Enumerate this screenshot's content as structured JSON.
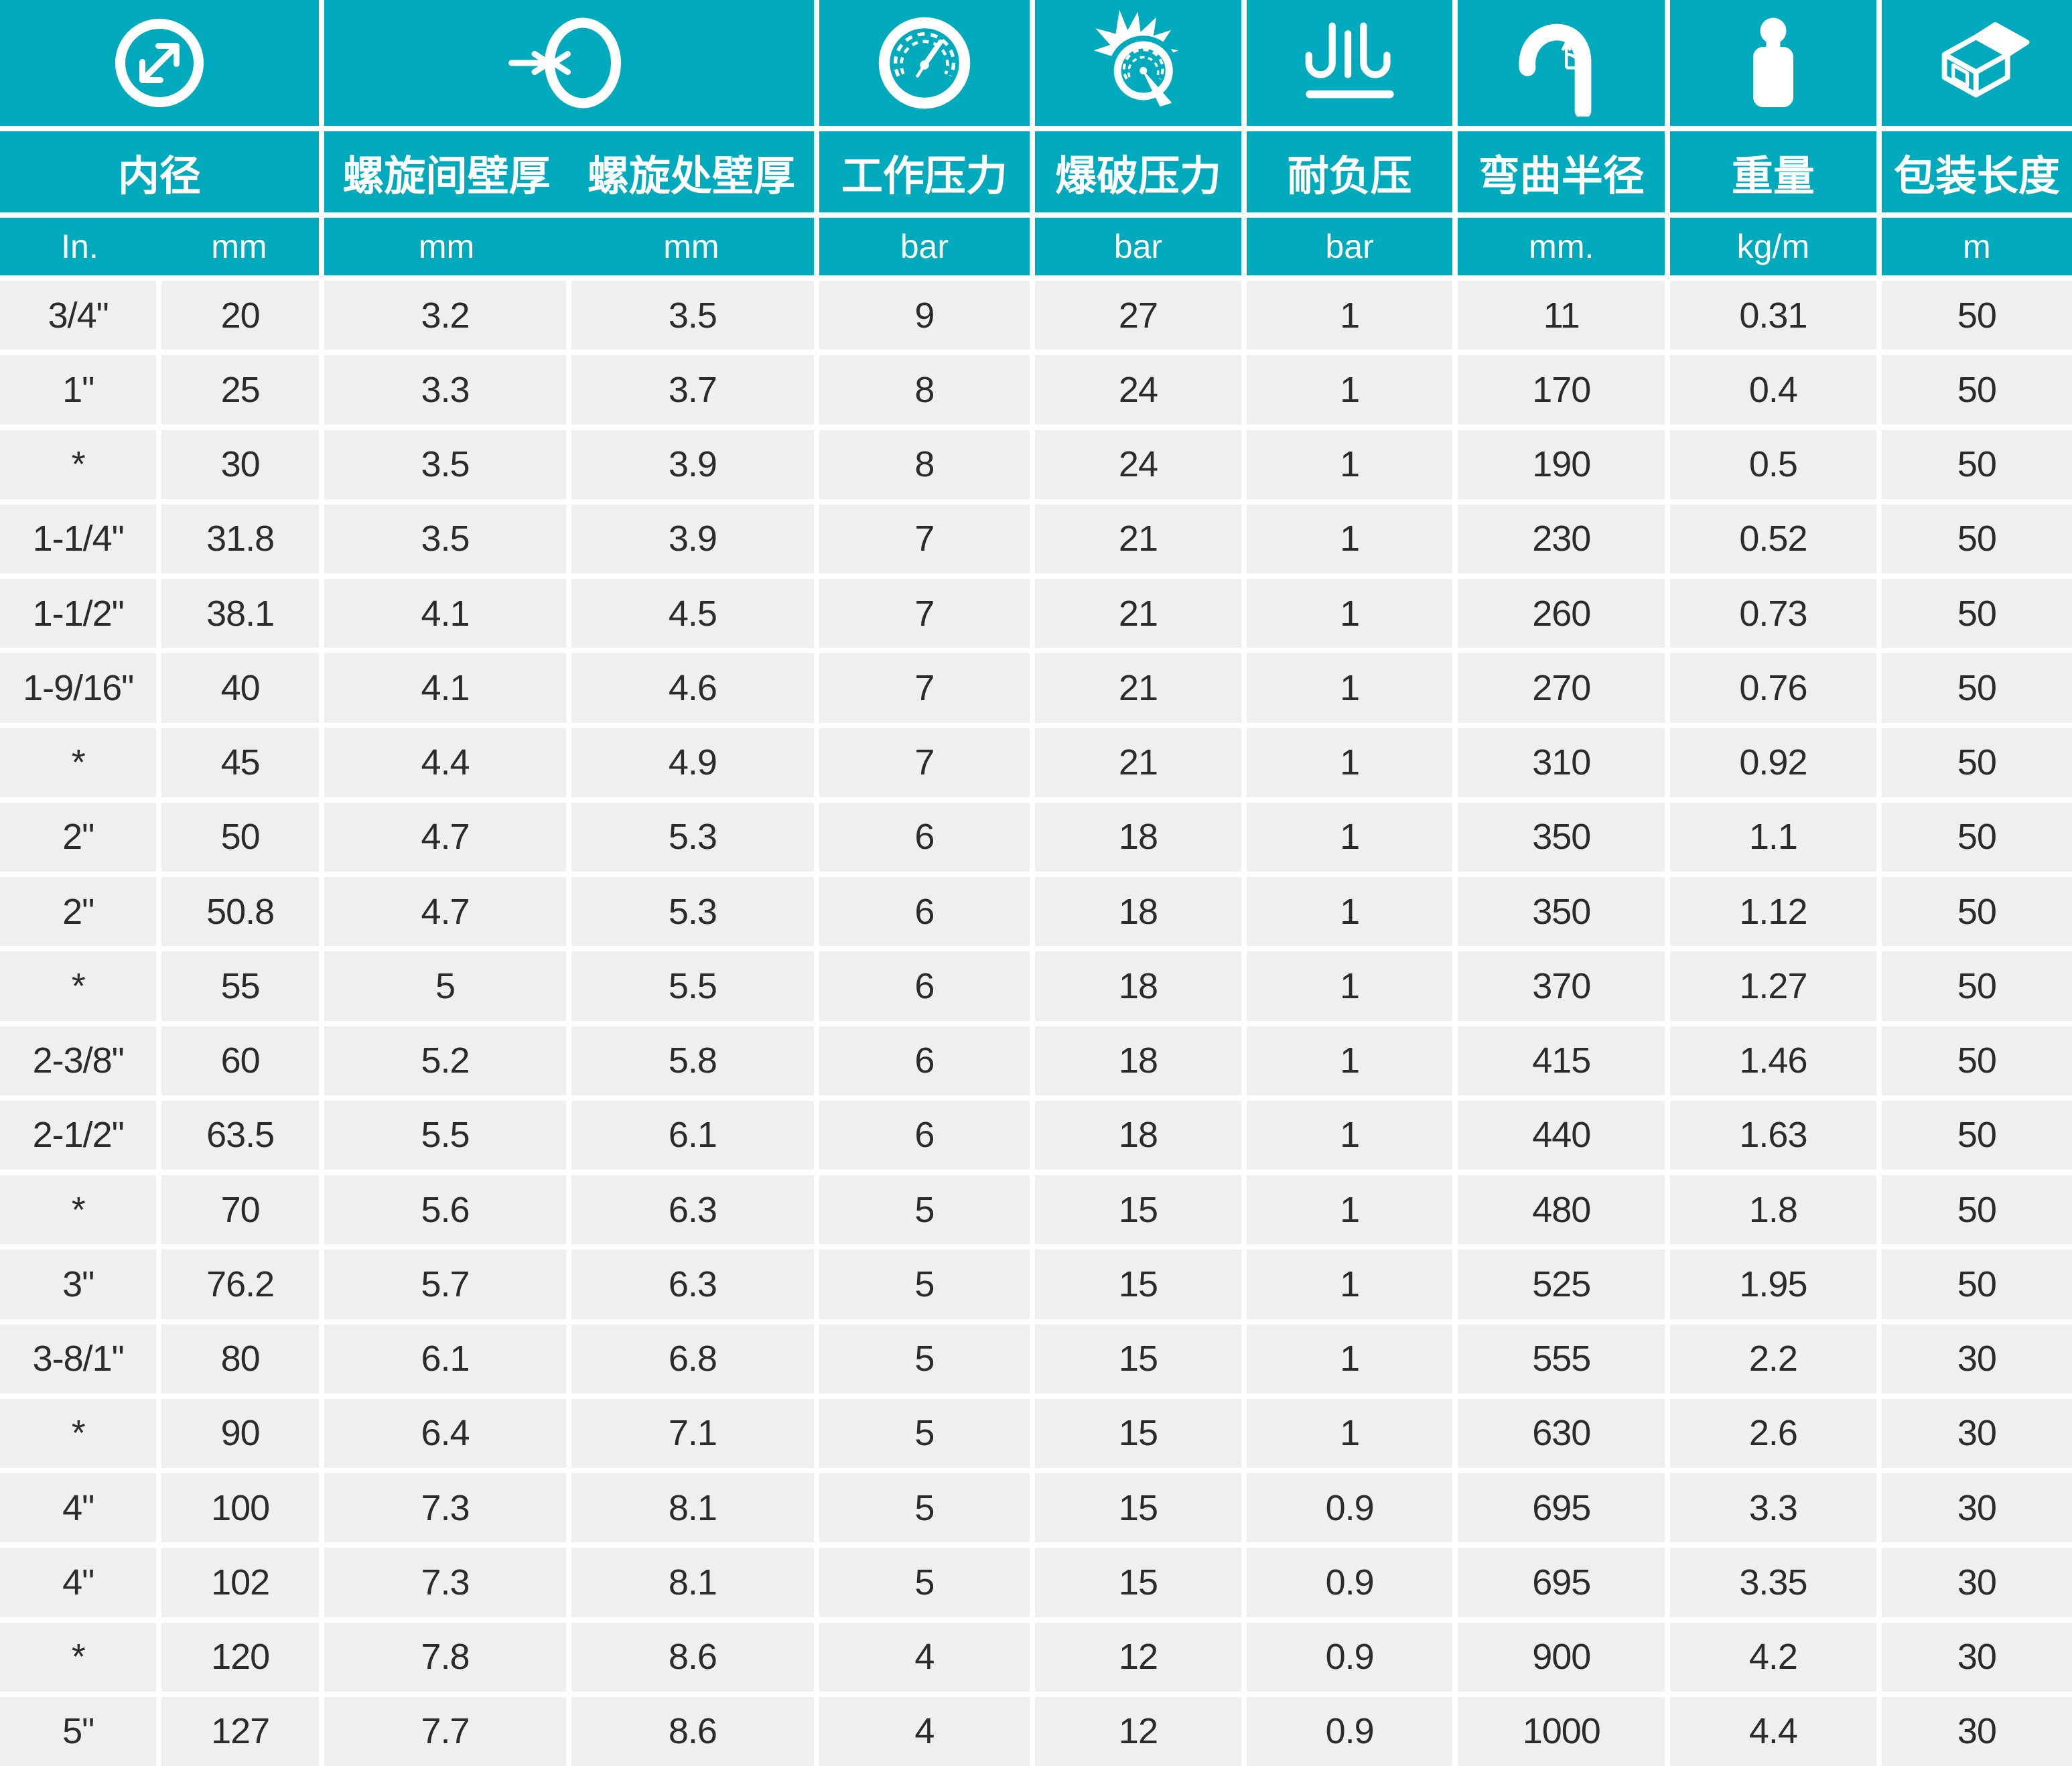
{
  "table": {
    "colors": {
      "header_teal": "#00AABD",
      "row_gray": "#EFEFEF",
      "grid_white": "#FFFFFF",
      "text_dark": "#2B2B2B"
    },
    "column_groups": [
      {
        "label": "内径",
        "icon": "inner-diameter-icon",
        "units": [
          "In.",
          "mm"
        ]
      },
      {
        "labels": [
          "螺旋间壁厚",
          "螺旋处壁厚"
        ],
        "icon": "wall-thickness-icon",
        "units": [
          "mm",
          "mm"
        ]
      },
      {
        "label": "工作压力",
        "icon": "working-pressure-gauge-icon",
        "unit": "bar"
      },
      {
        "label": "爆破压力",
        "icon": "burst-pressure-icon",
        "unit": "bar"
      },
      {
        "label": "耐负压",
        "icon": "vacuum-resistance-icon",
        "unit": "bar"
      },
      {
        "label": "弯曲半径",
        "icon": "bend-radius-icon",
        "unit": "mm."
      },
      {
        "label": "重量",
        "icon": "weight-icon",
        "unit": "kg/m"
      },
      {
        "label": "包装长度",
        "icon": "package-length-icon",
        "unit": "m"
      }
    ],
    "rows": [
      [
        "3/4\"",
        "20",
        "3.2",
        "3.5",
        "9",
        "27",
        "1",
        "11",
        "0.31",
        "50"
      ],
      [
        "1\"",
        "25",
        "3.3",
        "3.7",
        "8",
        "24",
        "1",
        "170",
        "0.4",
        "50"
      ],
      [
        "*",
        "30",
        "3.5",
        "3.9",
        "8",
        "24",
        "1",
        "190",
        "0.5",
        "50"
      ],
      [
        "1-1/4\"",
        "31.8",
        "3.5",
        "3.9",
        "7",
        "21",
        "1",
        "230",
        "0.52",
        "50"
      ],
      [
        "1-1/2\"",
        "38.1",
        "4.1",
        "4.5",
        "7",
        "21",
        "1",
        "260",
        "0.73",
        "50"
      ],
      [
        "1-9/16\"",
        "40",
        "4.1",
        "4.6",
        "7",
        "21",
        "1",
        "270",
        "0.76",
        "50"
      ],
      [
        "*",
        "45",
        "4.4",
        "4.9",
        "7",
        "21",
        "1",
        "310",
        "0.92",
        "50"
      ],
      [
        "2\"",
        "50",
        "4.7",
        "5.3",
        "6",
        "18",
        "1",
        "350",
        "1.1",
        "50"
      ],
      [
        "2\"",
        "50.8",
        "4.7",
        "5.3",
        "6",
        "18",
        "1",
        "350",
        "1.12",
        "50"
      ],
      [
        "*",
        "55",
        "5",
        "5.5",
        "6",
        "18",
        "1",
        "370",
        "1.27",
        "50"
      ],
      [
        "2-3/8\"",
        "60",
        "5.2",
        "5.8",
        "6",
        "18",
        "1",
        "415",
        "1.46",
        "50"
      ],
      [
        "2-1/2\"",
        "63.5",
        "5.5",
        "6.1",
        "6",
        "18",
        "1",
        "440",
        "1.63",
        "50"
      ],
      [
        "*",
        "70",
        "5.6",
        "6.3",
        "5",
        "15",
        "1",
        "480",
        "1.8",
        "50"
      ],
      [
        "3\"",
        "76.2",
        "5.7",
        "6.3",
        "5",
        "15",
        "1",
        "525",
        "1.95",
        "50"
      ],
      [
        "3-8/1\"",
        "80",
        "6.1",
        "6.8",
        "5",
        "15",
        "1",
        "555",
        "2.2",
        "30"
      ],
      [
        "*",
        "90",
        "6.4",
        "7.1",
        "5",
        "15",
        "1",
        "630",
        "2.6",
        "30"
      ],
      [
        "4\"",
        "100",
        "7.3",
        "8.1",
        "5",
        "15",
        "0.9",
        "695",
        "3.3",
        "30"
      ],
      [
        "4\"",
        "102",
        "7.3",
        "8.1",
        "5",
        "15",
        "0.9",
        "695",
        "3.35",
        "30"
      ],
      [
        "*",
        "120",
        "7.8",
        "8.6",
        "4",
        "12",
        "0.9",
        "900",
        "4.2",
        "30"
      ],
      [
        "5\"",
        "127",
        "7.7",
        "8.6",
        "4",
        "12",
        "0.9",
        "1000",
        "4.4",
        "30"
      ]
    ]
  }
}
